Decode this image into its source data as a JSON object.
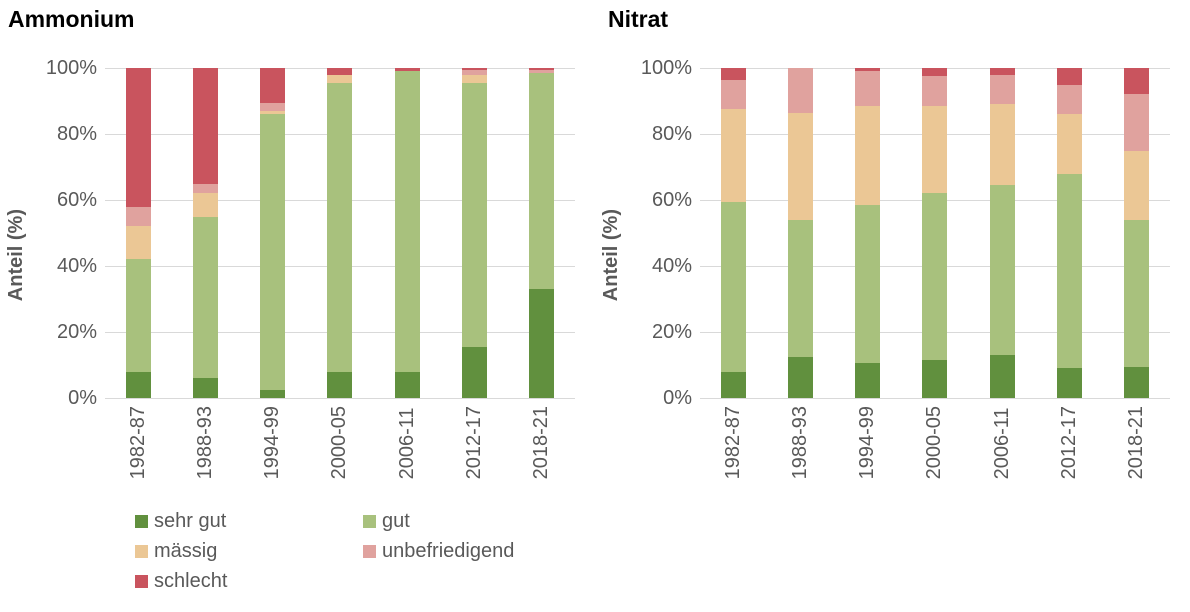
{
  "palette": {
    "background": "#ffffff",
    "grid": "#d9d9d9",
    "axis_line": "#d9d9d9",
    "axis_text": "#595959",
    "title_text": "#000000",
    "sehr_gut": "#61903e",
    "gut": "#a8c17d",
    "maessig": "#ebc795",
    "unbefriedigend": "#e0a29e",
    "schlecht": "#c9545e"
  },
  "chart_data": [
    {
      "type": "bar",
      "stacked": true,
      "title": "Ammonium",
      "ylabel": "Anteil (%)",
      "xlabel": "",
      "ylim": [
        0,
        100
      ],
      "grid": true,
      "ytick_labels": [
        "100%",
        "80%",
        "60%",
        "40%",
        "20%",
        "0%"
      ],
      "categories": [
        "1982-87",
        "1988-93",
        "1994-99",
        "2000-05",
        "2006-11",
        "2012-17",
        "2018-21"
      ],
      "series": [
        {
          "name": "sehr gut",
          "color": "#61903e",
          "values": [
            8,
            6,
            2.5,
            8,
            8,
            15.5,
            33
          ]
        },
        {
          "name": "gut",
          "color": "#a8c17d",
          "values": [
            34,
            49,
            83.5,
            87.5,
            91,
            80,
            65.5
          ]
        },
        {
          "name": "mässig",
          "color": "#ebc795",
          "values": [
            10,
            7,
            1,
            2.5,
            0,
            2.5,
            0
          ]
        },
        {
          "name": "unbefriedigend",
          "color": "#e0a29e",
          "values": [
            6,
            3,
            2.5,
            0,
            0,
            1.5,
            1
          ]
        },
        {
          "name": "schlecht",
          "color": "#c9545e",
          "values": [
            42,
            35,
            10.5,
            2,
            1,
            0.5,
            0.5
          ]
        }
      ]
    },
    {
      "type": "bar",
      "stacked": true,
      "title": "Nitrat",
      "ylabel": "Anteil (%)",
      "xlabel": "",
      "ylim": [
        0,
        100
      ],
      "grid": true,
      "ytick_labels": [
        "100%",
        "80%",
        "60%",
        "40%",
        "20%",
        "0%"
      ],
      "categories": [
        "1982-87",
        "1988-93",
        "1994-99",
        "2000-05",
        "2006-11",
        "2012-17",
        "2018-21"
      ],
      "series": [
        {
          "name": "sehr gut",
          "color": "#61903e",
          "values": [
            8,
            12.5,
            10.5,
            11.5,
            13,
            9,
            9.5
          ]
        },
        {
          "name": "gut",
          "color": "#a8c17d",
          "values": [
            51.5,
            41.5,
            48,
            50.5,
            51.5,
            59,
            44.5
          ]
        },
        {
          "name": "mässig",
          "color": "#ebc795",
          "values": [
            28,
            32.5,
            30,
            26.5,
            24.5,
            18,
            21
          ]
        },
        {
          "name": "unbefriedigend",
          "color": "#e0a29e",
          "values": [
            9,
            13.5,
            10.5,
            9,
            9,
            9,
            17
          ]
        },
        {
          "name": "schlecht",
          "color": "#c9545e",
          "values": [
            3.5,
            0,
            1,
            2.5,
            2,
            5,
            8
          ]
        }
      ]
    }
  ],
  "legend": {
    "position": "bottom-left",
    "columns": 2,
    "items": [
      {
        "label": "sehr gut",
        "color": "#61903e"
      },
      {
        "label": "gut",
        "color": "#a8c17d"
      },
      {
        "label": "mässig",
        "color": "#ebc795"
      },
      {
        "label": "unbefriedigend",
        "color": "#e0a29e"
      },
      {
        "label": "schlecht",
        "color": "#c9545e"
      }
    ]
  }
}
